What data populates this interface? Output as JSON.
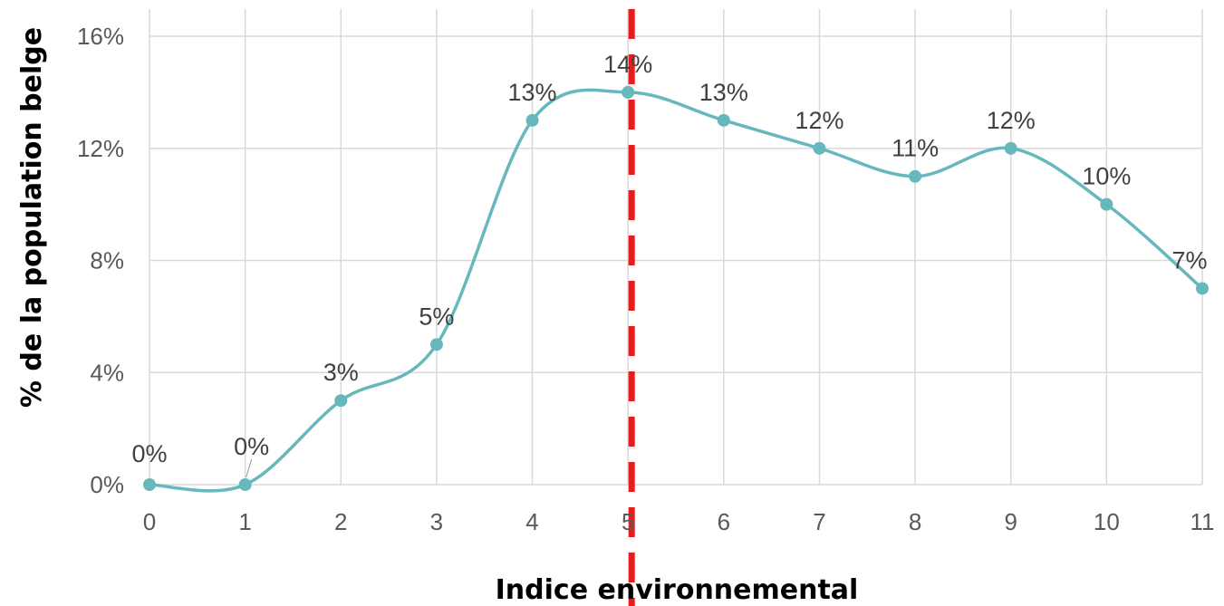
{
  "chart_data": {
    "type": "line",
    "smooth": true,
    "xlabel": "Indice environnemental",
    "ylabel": "% de la population belge",
    "x": [
      0,
      1,
      2,
      3,
      4,
      5,
      6,
      7,
      8,
      9,
      10,
      11
    ],
    "x_tick_labels": [
      "0",
      "1",
      "2",
      "3",
      "4",
      "5",
      "6",
      "7",
      "8",
      "9",
      "10",
      "11"
    ],
    "y_ticks": [
      0,
      4,
      8,
      12,
      16
    ],
    "y_tick_labels": [
      "0%",
      "4%",
      "8%",
      "12%",
      "16%"
    ],
    "ylim": [
      0,
      16
    ],
    "xlim": [
      0,
      11
    ],
    "grid": true,
    "series": [
      {
        "values": [
          0,
          0,
          3,
          5,
          13,
          14,
          13,
          12,
          11,
          12,
          10,
          7
        ],
        "data_labels": [
          "0%",
          "0%",
          "3%",
          "5%",
          "13%",
          "14%",
          "13%",
          "12%",
          "11%",
          "12%",
          "10%",
          "7%"
        ],
        "color": "#66B8BD"
      }
    ],
    "reference_line": {
      "axis": "x",
      "value": 5,
      "style": "dashed",
      "color": "#E81C1C"
    }
  }
}
